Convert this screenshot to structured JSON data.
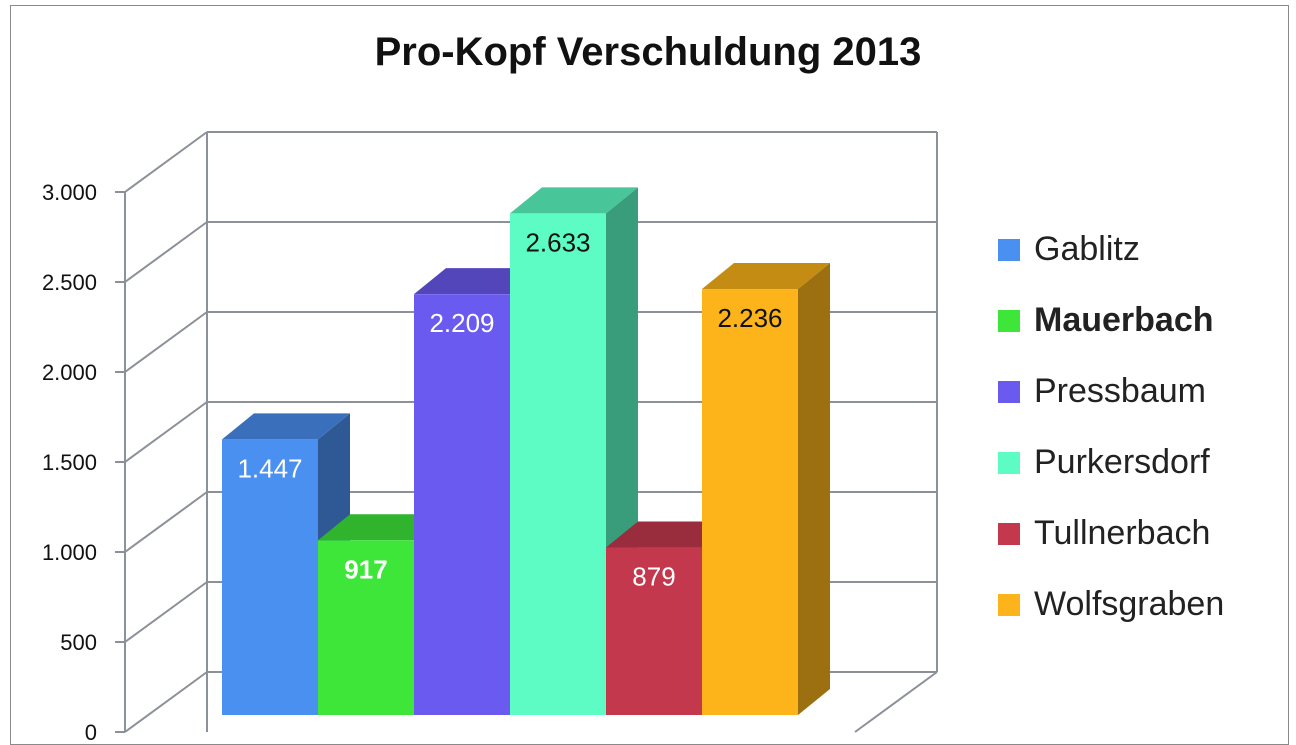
{
  "chart_data": {
    "type": "bar",
    "title": "Pro-Kopf Verschuldung 2013",
    "xlabel": "",
    "ylabel": "",
    "ylim": [
      0,
      3000
    ],
    "yticks": [
      0,
      500,
      1000,
      1500,
      2000,
      2500,
      3000
    ],
    "ytick_labels": [
      "0",
      "500",
      "1.000",
      "1.500",
      "2.000",
      "2.500",
      "3.000"
    ],
    "grid": true,
    "legend_position": "right",
    "categories": [
      "Gablitz",
      "Mauerbach",
      "Pressbaum",
      "Purkersdorf",
      "Tullnerbach",
      "Wolfsgraben"
    ],
    "values": [
      1447,
      917,
      2209,
      2633,
      879,
      2236
    ],
    "value_labels": [
      "1.447",
      "917",
      "2.209",
      "2.633",
      "879",
      "2.236"
    ],
    "highlighted": "Mauerbach",
    "colors": [
      "#4a90f0",
      "#3ee63a",
      "#6a5af0",
      "#5cfcc4",
      "#c4384e",
      "#fcb41a"
    ]
  }
}
